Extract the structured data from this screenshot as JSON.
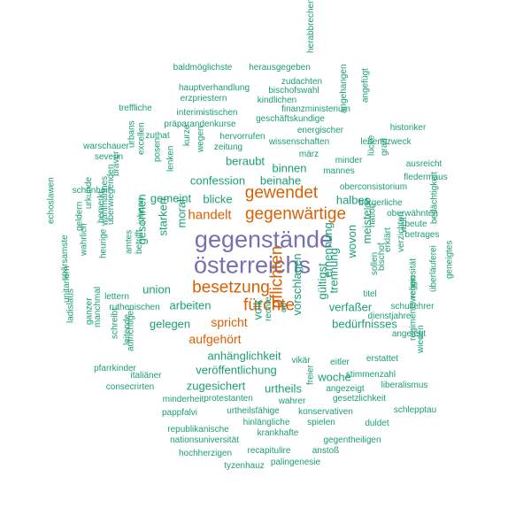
{
  "colors": {
    "large": "#7570b3",
    "medium": "#d95f02",
    "small": "#1b9e77"
  },
  "words": [
    {
      "text": "gegenstände",
      "tier": "large"
    },
    {
      "text": "österreichs",
      "tier": "large"
    },
    {
      "text": "gewendet",
      "tier": "medium"
    },
    {
      "text": "gegenwärtige",
      "tier": "medium"
    },
    {
      "text": "besetzung",
      "tier": "medium"
    },
    {
      "text": "fürchte",
      "tier": "medium"
    },
    {
      "text": "pflichten",
      "tier": "medium"
    },
    {
      "text": "handelt",
      "tier": "medium"
    },
    {
      "text": "spricht",
      "tier": "medium"
    },
    {
      "text": "aufgehört",
      "tier": "medium"
    },
    {
      "text": "baldmöglichste",
      "tier": "small"
    },
    {
      "text": "herausgegeben",
      "tier": "small"
    },
    {
      "text": "herabbrechen",
      "tier": "small"
    },
    {
      "text": "zudachten",
      "tier": "small"
    },
    {
      "text": "hauptverhandlung",
      "tier": "small"
    },
    {
      "text": "bischofswahl",
      "tier": "small"
    },
    {
      "text": "erzpriestern",
      "tier": "small"
    },
    {
      "text": "kindlichen",
      "tier": "small"
    },
    {
      "text": "finanzministerium",
      "tier": "small"
    },
    {
      "text": "angehangen",
      "tier": "small"
    },
    {
      "text": "angefügt",
      "tier": "small"
    },
    {
      "text": "treffliche",
      "tier": "small"
    },
    {
      "text": "interimistischen",
      "tier": "small"
    },
    {
      "text": "geschäftskundige",
      "tier": "small"
    },
    {
      "text": "präparandenkurse",
      "tier": "small"
    },
    {
      "text": "energischer",
      "tier": "small"
    },
    {
      "text": "historiker",
      "tier": "small"
    },
    {
      "text": "zuthat",
      "tier": "small"
    },
    {
      "text": "hervorrufen",
      "tier": "small"
    },
    {
      "text": "wissenschaften",
      "tier": "small"
    },
    {
      "text": "lebenszweck",
      "tier": "small"
    },
    {
      "text": "warschauer",
      "tier": "small"
    },
    {
      "text": "zeitung",
      "tier": "small"
    },
    {
      "text": "grad",
      "tier": "small"
    },
    {
      "text": "severin",
      "tier": "small"
    },
    {
      "text": "urbans",
      "tier": "small"
    },
    {
      "text": "excellen",
      "tier": "small"
    },
    {
      "text": "posen",
      "tier": "small"
    },
    {
      "text": "kurze",
      "tier": "small"
    },
    {
      "text": "wegen",
      "tier": "small"
    },
    {
      "text": "märz",
      "tier": "small"
    },
    {
      "text": "minder",
      "tier": "small"
    },
    {
      "text": "mannes",
      "tier": "small"
    },
    {
      "text": "lücke",
      "tier": "small"
    },
    {
      "text": "ausreicht",
      "tier": "small"
    },
    {
      "text": "beraubt",
      "tier": "small"
    },
    {
      "text": "binnen",
      "tier": "small"
    },
    {
      "text": "fledermaus",
      "tier": "small"
    },
    {
      "text": "schönheit",
      "tier": "small"
    },
    {
      "text": "braver",
      "tier": "small"
    },
    {
      "text": "confession",
      "tier": "small"
    },
    {
      "text": "beinahe",
      "tier": "small"
    },
    {
      "text": "oberconsistorium",
      "tier": "small"
    },
    {
      "text": "lenken",
      "tier": "small"
    },
    {
      "text": "echoslawen",
      "tier": "small"
    },
    {
      "text": "urkunde",
      "tier": "small"
    },
    {
      "text": "gemeint",
      "tier": "small"
    },
    {
      "text": "blicke",
      "tier": "small"
    },
    {
      "text": "halbes",
      "tier": "small"
    },
    {
      "text": "bürgerliche",
      "tier": "small"
    },
    {
      "text": "bedächtigkeit",
      "tier": "small"
    },
    {
      "text": "geldern",
      "tier": "small"
    },
    {
      "text": "bemerkt",
      "tier": "small"
    },
    {
      "text": "überwiegenden",
      "tier": "small"
    },
    {
      "text": "johann",
      "tier": "small"
    },
    {
      "text": "loo",
      "tier": "small"
    },
    {
      "text": "nation",
      "tier": "small"
    },
    {
      "text": "oberwähnten",
      "tier": "small"
    },
    {
      "text": "wahlmannes",
      "tier": "small"
    },
    {
      "text": "beute",
      "tier": "small"
    },
    {
      "text": "wahrlich",
      "tier": "small"
    },
    {
      "text": "starken",
      "tier": "small"
    },
    {
      "text": "moral",
      "tier": "small"
    },
    {
      "text": "betrages",
      "tier": "small"
    },
    {
      "text": "heurige",
      "tier": "small"
    },
    {
      "text": "amtes",
      "tier": "small"
    },
    {
      "text": "betrifft",
      "tier": "small"
    },
    {
      "text": "gesonnen",
      "tier": "small"
    },
    {
      "text": "wovon",
      "tier": "small"
    },
    {
      "text": "meiste",
      "tier": "small"
    },
    {
      "text": "erklärt",
      "tier": "small"
    },
    {
      "text": "welt",
      "tier": "small"
    },
    {
      "text": "verzichten",
      "tier": "small"
    },
    {
      "text": "spärsamste",
      "tier": "small"
    },
    {
      "text": "ernennung",
      "tier": "small"
    },
    {
      "text": "geneigtes",
      "tier": "small"
    },
    {
      "text": "überläuferei",
      "tier": "small"
    },
    {
      "text": "bischof",
      "tier": "small"
    },
    {
      "text": "sollen",
      "tier": "small"
    },
    {
      "text": "union",
      "tier": "small"
    },
    {
      "text": "religiosität",
      "tier": "small"
    },
    {
      "text": "lettern",
      "tier": "small"
    },
    {
      "text": "titel",
      "tier": "small"
    },
    {
      "text": "gültigst",
      "tier": "small"
    },
    {
      "text": "verfaßer",
      "tier": "small"
    },
    {
      "text": "schullehrer",
      "tier": "small"
    },
    {
      "text": "unitariern",
      "tier": "small"
    },
    {
      "text": "ruthenischen",
      "tier": "small"
    },
    {
      "text": "arbeiten",
      "tier": "small"
    },
    {
      "text": "trennung",
      "tier": "small"
    },
    {
      "text": "ladislaus",
      "tier": "small"
    },
    {
      "text": "ganzer",
      "tier": "small"
    },
    {
      "text": "gelegen",
      "tier": "small"
    },
    {
      "text": "volk",
      "tier": "small"
    },
    {
      "text": "od",
      "tier": "small"
    },
    {
      "text": "rechte",
      "tier": "small"
    },
    {
      "text": "dienstjahre",
      "tier": "small"
    },
    {
      "text": "vorschlagen",
      "tier": "small"
    },
    {
      "text": "manchmal",
      "tier": "small"
    },
    {
      "text": "schreibt",
      "tier": "small"
    },
    {
      "text": "bedürfnisses",
      "tier": "small"
    },
    {
      "text": "angelegt",
      "tier": "small"
    },
    {
      "text": "leitende",
      "tier": "small"
    },
    {
      "text": "aufrichtiger",
      "tier": "small"
    },
    {
      "text": "anhänglichkeit",
      "tier": "small"
    },
    {
      "text": "regimentswegen",
      "tier": "small"
    },
    {
      "text": "pfarrkinder",
      "tier": "small"
    },
    {
      "text": "italiäner",
      "tier": "small"
    },
    {
      "text": "veröffentlichung",
      "tier": "small"
    },
    {
      "text": "vikär",
      "tier": "small"
    },
    {
      "text": "eitler",
      "tier": "small"
    },
    {
      "text": "erstattet",
      "tier": "small"
    },
    {
      "text": "wieden",
      "tier": "small"
    },
    {
      "text": "consecrirten",
      "tier": "small"
    },
    {
      "text": "zugesichert",
      "tier": "small"
    },
    {
      "text": "urtheils",
      "tier": "small"
    },
    {
      "text": "woche",
      "tier": "small"
    },
    {
      "text": "stimmenzahl",
      "tier": "small"
    },
    {
      "text": "freier",
      "tier": "small"
    },
    {
      "text": "liberalismus",
      "tier": "small"
    },
    {
      "text": "angezeigt",
      "tier": "small"
    },
    {
      "text": "minderheit",
      "tier": "small"
    },
    {
      "text": "protestanten",
      "tier": "small"
    },
    {
      "text": "wahrer",
      "tier": "small"
    },
    {
      "text": "gesetzlichkeit",
      "tier": "small"
    },
    {
      "text": "pappfalvi",
      "tier": "small"
    },
    {
      "text": "urtheilsfähige",
      "tier": "small"
    },
    {
      "text": "konservativen",
      "tier": "small"
    },
    {
      "text": "schlepptau",
      "tier": "small"
    },
    {
      "text": "hinlängliche",
      "tier": "small"
    },
    {
      "text": "spielen",
      "tier": "small"
    },
    {
      "text": "duldet",
      "tier": "small"
    },
    {
      "text": "republikanische",
      "tier": "small"
    },
    {
      "text": "krankhafte",
      "tier": "small"
    },
    {
      "text": "nationsuniversität",
      "tier": "small"
    },
    {
      "text": "gegentheiligen",
      "tier": "small"
    },
    {
      "text": "hochherzigen",
      "tier": "small"
    },
    {
      "text": "recapitulire",
      "tier": "small"
    },
    {
      "text": "anstoß",
      "tier": "small"
    },
    {
      "text": "tyzenhauz",
      "tier": "small"
    },
    {
      "text": "palingenesie",
      "tier": "small"
    }
  ]
}
